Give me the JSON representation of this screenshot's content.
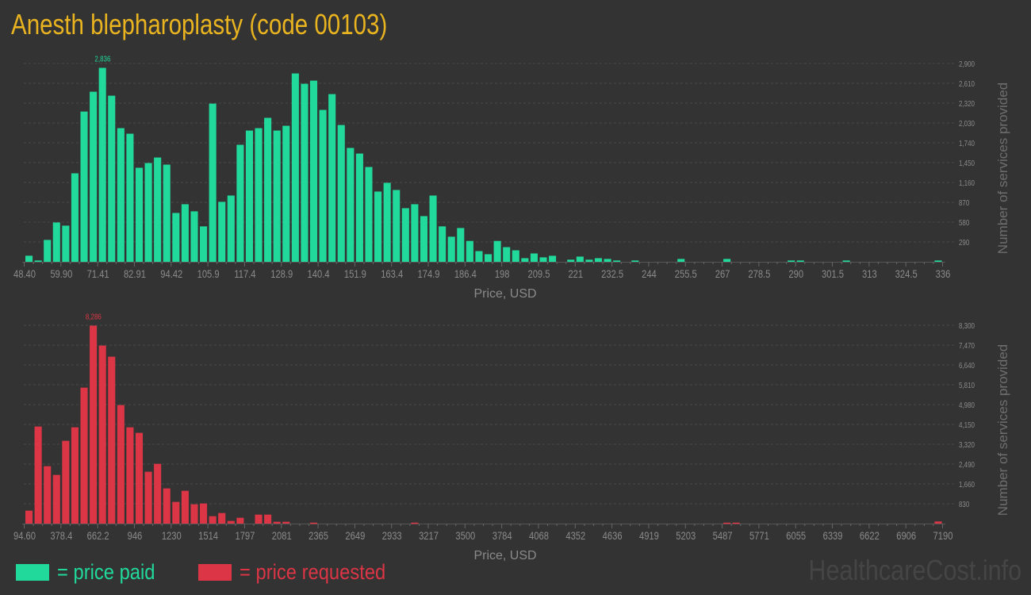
{
  "title": "Anesth blepharoplasty (code 00103)",
  "legend": {
    "paid": "= price paid",
    "requested": "= price requested"
  },
  "watermark": "HealthcareCost.info",
  "colors": {
    "paid": "#20d99a",
    "requested": "#dc3545",
    "title": "#e9b41f",
    "background": "#333333"
  },
  "chart_data": [
    {
      "type": "bar",
      "series": [
        {
          "name": "price paid",
          "values": [
            89,
            19,
            320,
            575,
            529,
            1294,
            2197,
            2487,
            2836,
            2429,
            1954,
            1873,
            1375,
            1444,
            1525,
            1421,
            714,
            842,
            738,
            518,
            2313,
            877,
            969,
            1711,
            1919,
            1954,
            2105,
            1919,
            1989,
            2754,
            2603,
            2649,
            2221,
            2452,
            2000,
            1665,
            1583,
            1386,
            1027,
            1155,
            1050,
            784,
            842,
            668,
            969,
            518,
            367,
            494,
            305,
            156,
            111,
            305,
            214,
            168,
            53,
            122,
            65,
            88,
            0,
            31,
            76,
            31,
            53,
            42,
            19,
            0,
            19,
            0,
            0,
            0,
            0,
            42,
            0,
            0,
            0,
            0,
            42,
            0,
            0,
            0,
            0,
            0,
            0,
            19,
            19,
            0,
            0,
            0,
            0,
            19,
            0,
            0,
            0,
            0,
            0,
            0,
            0,
            0,
            0,
            19
          ]
        }
      ],
      "peak_label": "2,836",
      "xlabel": "Price, USD",
      "ylabel": "Number of services provided",
      "x_ticks": [
        "48.40",
        "59.90",
        "71.41",
        "82.91",
        "94.42",
        "105.9",
        "117.4",
        "128.9",
        "140.4",
        "151.9",
        "163.4",
        "174.9",
        "186.4",
        "198",
        "209.5",
        "221",
        "232.5",
        "244",
        "255.5",
        "267",
        "278.5",
        "290",
        "301.5",
        "313",
        "324.5",
        "336"
      ],
      "y_ticks": [
        "290",
        "580",
        "870",
        "1,160",
        "1,450",
        "1,740",
        "2,030",
        "2,320",
        "2,610",
        "2,900"
      ],
      "xlim": [
        48.4,
        336
      ],
      "ylim": [
        0,
        2900
      ],
      "grid": true
    },
    {
      "type": "bar",
      "series": [
        {
          "name": "price requested",
          "values": [
            542,
            4062,
            2402,
            2037,
            3465,
            4029,
            5690,
            8286,
            7450,
            6985,
            4959,
            4029,
            3797,
            2170,
            2502,
            1472,
            908,
            1373,
            808,
            841,
            310,
            443,
            111,
            244,
            0,
            376,
            376,
            77,
            77,
            0,
            0,
            40,
            0,
            0,
            0,
            0,
            0,
            0,
            0,
            0,
            0,
            0,
            40,
            0,
            0,
            0,
            0,
            0,
            0,
            0,
            0,
            0,
            0,
            0,
            0,
            0,
            0,
            0,
            0,
            0,
            0,
            0,
            0,
            0,
            0,
            0,
            0,
            0,
            0,
            0,
            0,
            0,
            0,
            0,
            0,
            0,
            40,
            40,
            0,
            0,
            0,
            0,
            0,
            0,
            0,
            0,
            0,
            0,
            0,
            0,
            0,
            0,
            0,
            0,
            0,
            0,
            0,
            0,
            0,
            90
          ]
        }
      ],
      "peak_label": "8,286",
      "xlabel": "Price, USD",
      "ylabel": "Number of services provided",
      "x_ticks": [
        "94.60",
        "378.4",
        "662.2",
        "946",
        "1230",
        "1514",
        "1797",
        "2081",
        "2365",
        "2649",
        "2933",
        "3217",
        "3500",
        "3784",
        "4068",
        "4352",
        "4636",
        "4919",
        "5203",
        "5487",
        "5771",
        "6055",
        "6339",
        "6622",
        "6906",
        "7190"
      ],
      "y_ticks": [
        "830",
        "1,660",
        "2,490",
        "3,320",
        "4,150",
        "4,980",
        "5,810",
        "6,640",
        "7,470",
        "8,300"
      ],
      "xlim": [
        94.6,
        7190
      ],
      "ylim": [
        0,
        8300
      ],
      "grid": true
    }
  ]
}
